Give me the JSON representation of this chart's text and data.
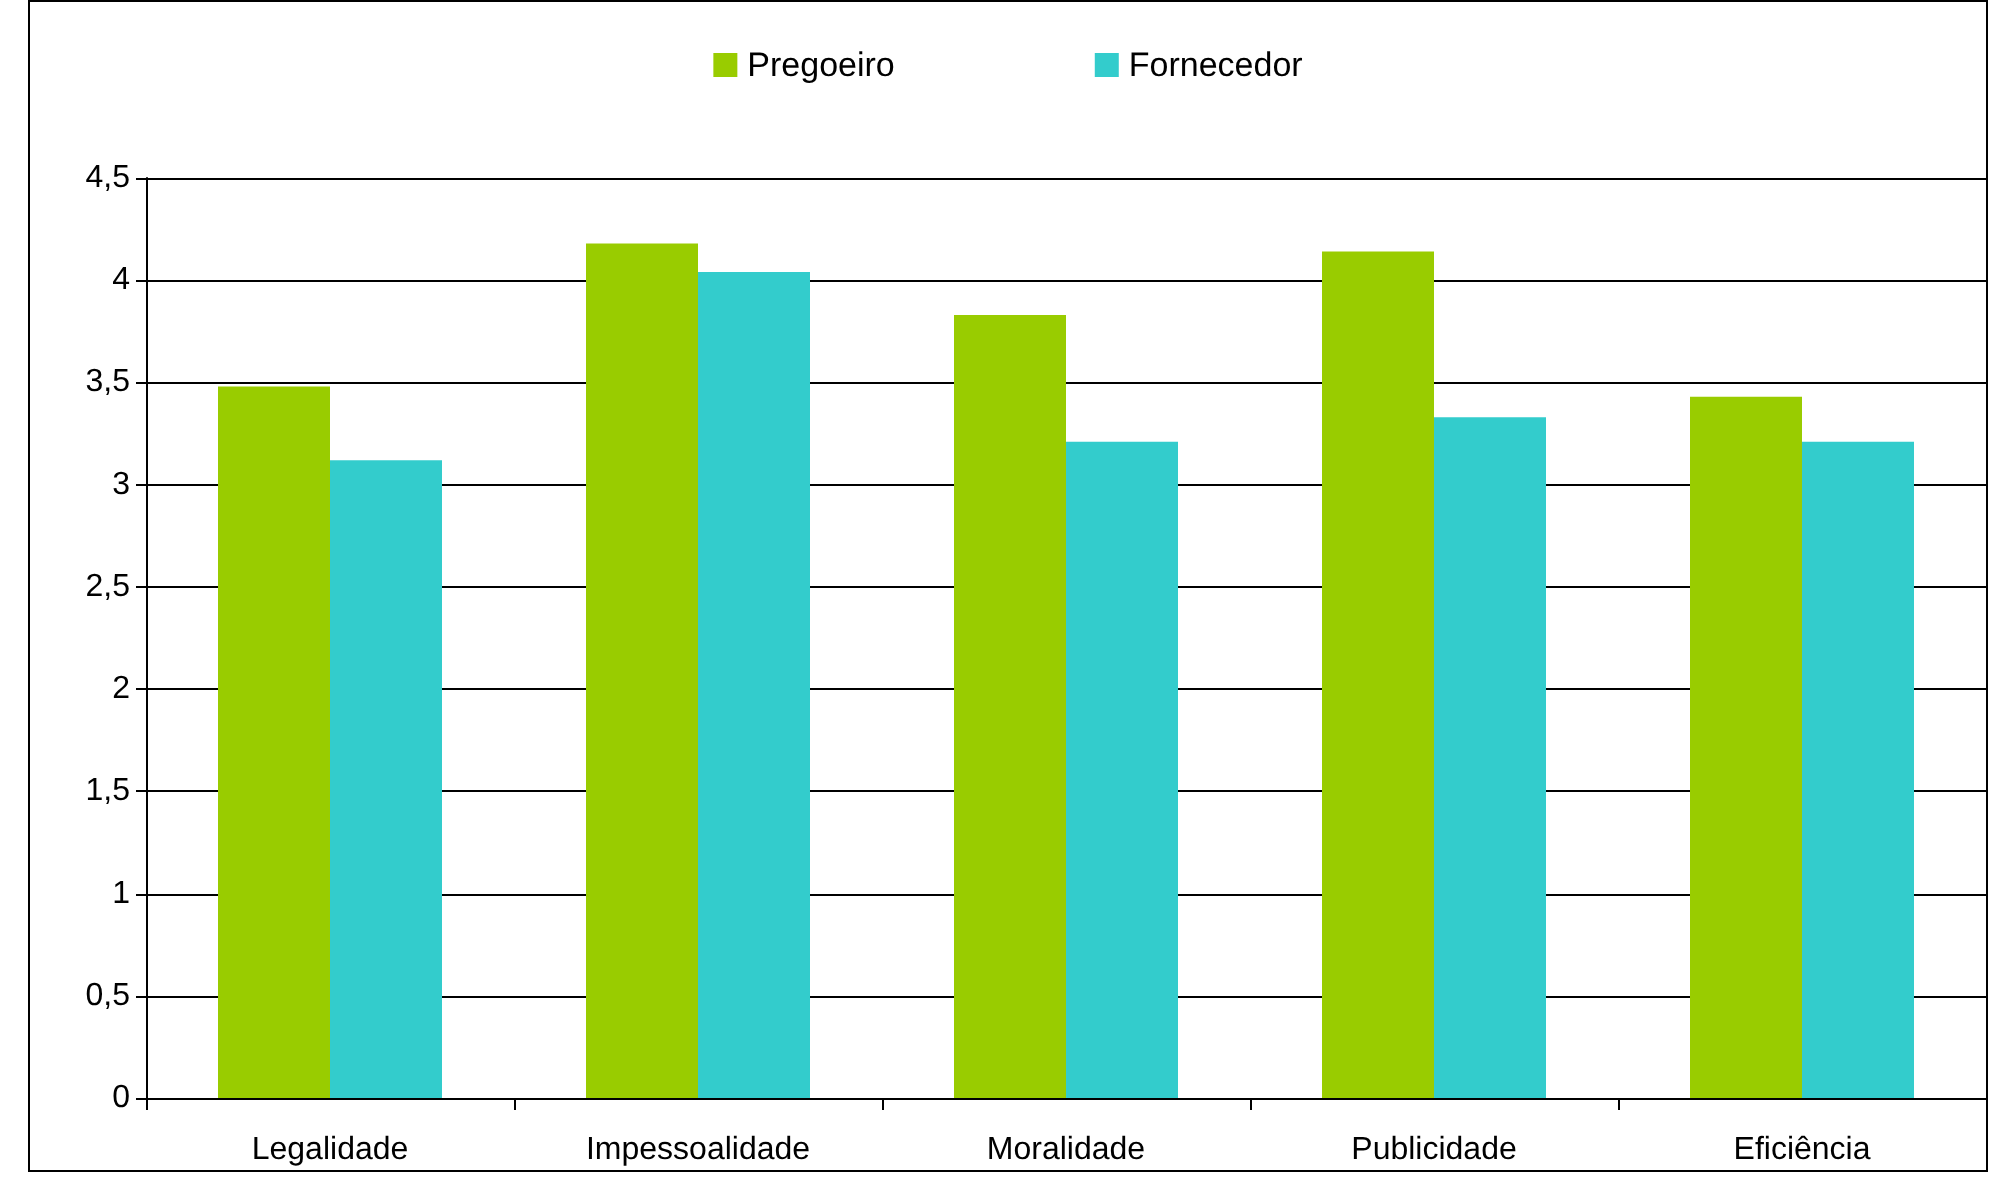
{
  "chart_data": {
    "type": "bar",
    "categories": [
      "Legalidade",
      "Impessoalidade",
      "Moralidade",
      "Publicidade",
      "Eficiência"
    ],
    "series": [
      {
        "name": "Pregoeiro",
        "color": "#99cc00",
        "values": [
          3.48,
          4.18,
          3.83,
          4.14,
          3.43
        ]
      },
      {
        "name": "Fornecedor",
        "color": "#33cccc",
        "values": [
          3.12,
          4.04,
          3.21,
          3.33,
          3.21
        ]
      }
    ],
    "ylim": [
      0,
      4.5
    ],
    "yticks": [
      0,
      {
        "value": 0.5,
        "label": "0,5"
      },
      1,
      {
        "value": 1.5,
        "label": "1,5"
      },
      2,
      {
        "value": 2.5,
        "label": "2,5"
      },
      3,
      {
        "value": 3.5,
        "label": "3,5"
      },
      4,
      {
        "value": 4.5,
        "label": "4,5"
      }
    ],
    "grid": "y",
    "legend": "top"
  }
}
